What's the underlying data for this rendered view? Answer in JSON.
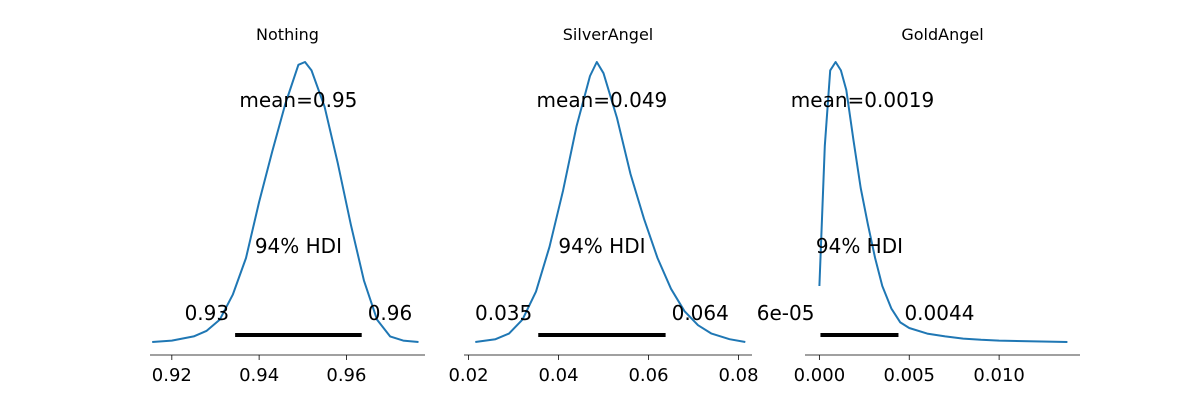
{
  "chart_data": [
    {
      "type": "area",
      "title": "Nothing",
      "mean_label": "mean=0.95",
      "hdi_label": "94% HDI",
      "hdi_low_label": "0.93",
      "hdi_high_label": "0.96",
      "hdi": [
        0.9345,
        0.9635
      ],
      "xlim": [
        0.915,
        0.978
      ],
      "x_ticks": [
        0.92,
        0.94,
        0.96
      ],
      "x_tick_labels": [
        "0.92",
        "0.94",
        "0.96"
      ],
      "density": {
        "x": [
          0.9155,
          0.92,
          0.925,
          0.928,
          0.931,
          0.934,
          0.937,
          0.94,
          0.943,
          0.946,
          0.949,
          0.9505,
          0.952,
          0.955,
          0.958,
          0.961,
          0.964,
          0.967,
          0.97,
          0.973,
          0.9765
        ],
        "y": [
          0.0,
          0.005,
          0.02,
          0.04,
          0.08,
          0.17,
          0.3,
          0.5,
          0.68,
          0.85,
          0.99,
          1.0,
          0.97,
          0.84,
          0.64,
          0.42,
          0.22,
          0.08,
          0.02,
          0.005,
          0.0
        ]
      },
      "line_color": "#1f77b4"
    },
    {
      "type": "area",
      "title": "SilverAngel",
      "mean_label": "mean=0.049",
      "hdi_label": "94% HDI",
      "hdi_low_label": "0.035",
      "hdi_high_label": "0.064",
      "hdi": [
        0.0355,
        0.0638
      ],
      "xlim": [
        0.019,
        0.083
      ],
      "x_ticks": [
        0.02,
        0.04,
        0.06,
        0.08
      ],
      "x_tick_labels": [
        "0.02",
        "0.04",
        "0.06",
        "0.08"
      ],
      "density": {
        "x": [
          0.0215,
          0.026,
          0.029,
          0.032,
          0.035,
          0.038,
          0.041,
          0.044,
          0.047,
          0.0485,
          0.05,
          0.053,
          0.056,
          0.059,
          0.062,
          0.065,
          0.068,
          0.071,
          0.074,
          0.078,
          0.0815
        ],
        "y": [
          0.0,
          0.01,
          0.03,
          0.08,
          0.18,
          0.34,
          0.54,
          0.77,
          0.95,
          1.0,
          0.96,
          0.8,
          0.6,
          0.44,
          0.3,
          0.19,
          0.11,
          0.06,
          0.03,
          0.01,
          0.0
        ]
      },
      "line_color": "#1f77b4"
    },
    {
      "type": "area",
      "title": "GoldAngel",
      "mean_label": "mean=0.0019",
      "hdi_label": "94% HDI",
      "hdi_low_label": "6e-05",
      "hdi_high_label": "0.0044",
      "hdi": [
        6e-05,
        0.0044
      ],
      "xlim": [
        -0.0008,
        0.0145
      ],
      "x_ticks": [
        0.0,
        0.005,
        0.01
      ],
      "x_tick_labels": [
        "0.000",
        "0.005",
        "0.010"
      ],
      "density": {
        "x": [
          0.0,
          0.0003,
          0.0006,
          0.0009,
          0.0012,
          0.0015,
          0.0019,
          0.0023,
          0.0027,
          0.0031,
          0.0035,
          0.004,
          0.0045,
          0.005,
          0.006,
          0.007,
          0.008,
          0.009,
          0.01,
          0.012,
          0.0138
        ],
        "y": [
          0.2,
          0.7,
          0.97,
          1.0,
          0.97,
          0.9,
          0.72,
          0.55,
          0.42,
          0.3,
          0.2,
          0.12,
          0.07,
          0.05,
          0.03,
          0.02,
          0.012,
          0.008,
          0.005,
          0.002,
          0.0
        ]
      },
      "line_color": "#1f77b4"
    }
  ]
}
